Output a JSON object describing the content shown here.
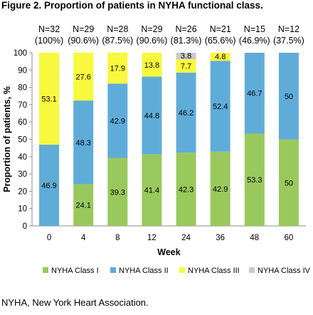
{
  "figure_title": "Figure 2. Proportion of patients in NYHA functional class.",
  "footnote": "NYHA, New York Heart Association.",
  "colors": {
    "NYHA Class I": "#99c95d",
    "NYHA Class II": "#60acd9",
    "NYHA Class III": "#f8f83e",
    "NYHA Class IV": "#c9c9c9"
  },
  "chart_data": {
    "type": "bar",
    "stacked": true,
    "categories": [
      "0",
      "4",
      "8",
      "12",
      "24",
      "36",
      "48",
      "60"
    ],
    "top_labels": [
      {
        "n": "N=32",
        "pct": "(100%)"
      },
      {
        "n": "N=29",
        "pct": "(90.6%)"
      },
      {
        "n": "N=28",
        "pct": "(87.5%)"
      },
      {
        "n": "N=29",
        "pct": "(90.6%)"
      },
      {
        "n": "N=26",
        "pct": "(81.3%)"
      },
      {
        "n": "N=21",
        "pct": "(65.6%)"
      },
      {
        "n": "N=15",
        "pct": "(46.9%)"
      },
      {
        "n": "N=12",
        "pct": "(37.5%)"
      }
    ],
    "series": [
      {
        "name": "NYHA Class I",
        "values": [
          0,
          24.1,
          39.3,
          41.4,
          42.3,
          42.9,
          53.3,
          50
        ],
        "labels": [
          "",
          "24.1",
          "39.3",
          "41.4",
          "42.3",
          "42.9",
          "53.3",
          "50"
        ]
      },
      {
        "name": "NYHA Class II",
        "values": [
          46.9,
          48.3,
          42.9,
          44.8,
          46.2,
          52.4,
          46.7,
          50
        ],
        "labels": [
          "46.9",
          "48.3",
          "42.9",
          "44.8",
          "46.2",
          "52.4",
          "46.7",
          "50"
        ]
      },
      {
        "name": "NYHA Class III",
        "values": [
          53.1,
          27.6,
          17.9,
          13.8,
          7.7,
          4.8,
          0,
          0
        ],
        "labels": [
          "53.1",
          "27.6",
          "17.9",
          "13.8",
          "7.7",
          "4.8",
          "",
          ""
        ]
      },
      {
        "name": "NYHA Class IV",
        "values": [
          0,
          0,
          0,
          0,
          3.8,
          0,
          0,
          0
        ],
        "labels": [
          "",
          "",
          "",
          "",
          "3.8",
          "",
          "",
          ""
        ]
      }
    ],
    "xlabel": "Week",
    "ylabel": "Proportion of patients, %",
    "ylim": [
      0,
      100
    ],
    "yticks": [
      "0",
      "10",
      "20",
      "30",
      "40",
      "50",
      "60",
      "70",
      "80",
      "90",
      "100"
    ],
    "legend_position": "bottom",
    "grid": false
  }
}
